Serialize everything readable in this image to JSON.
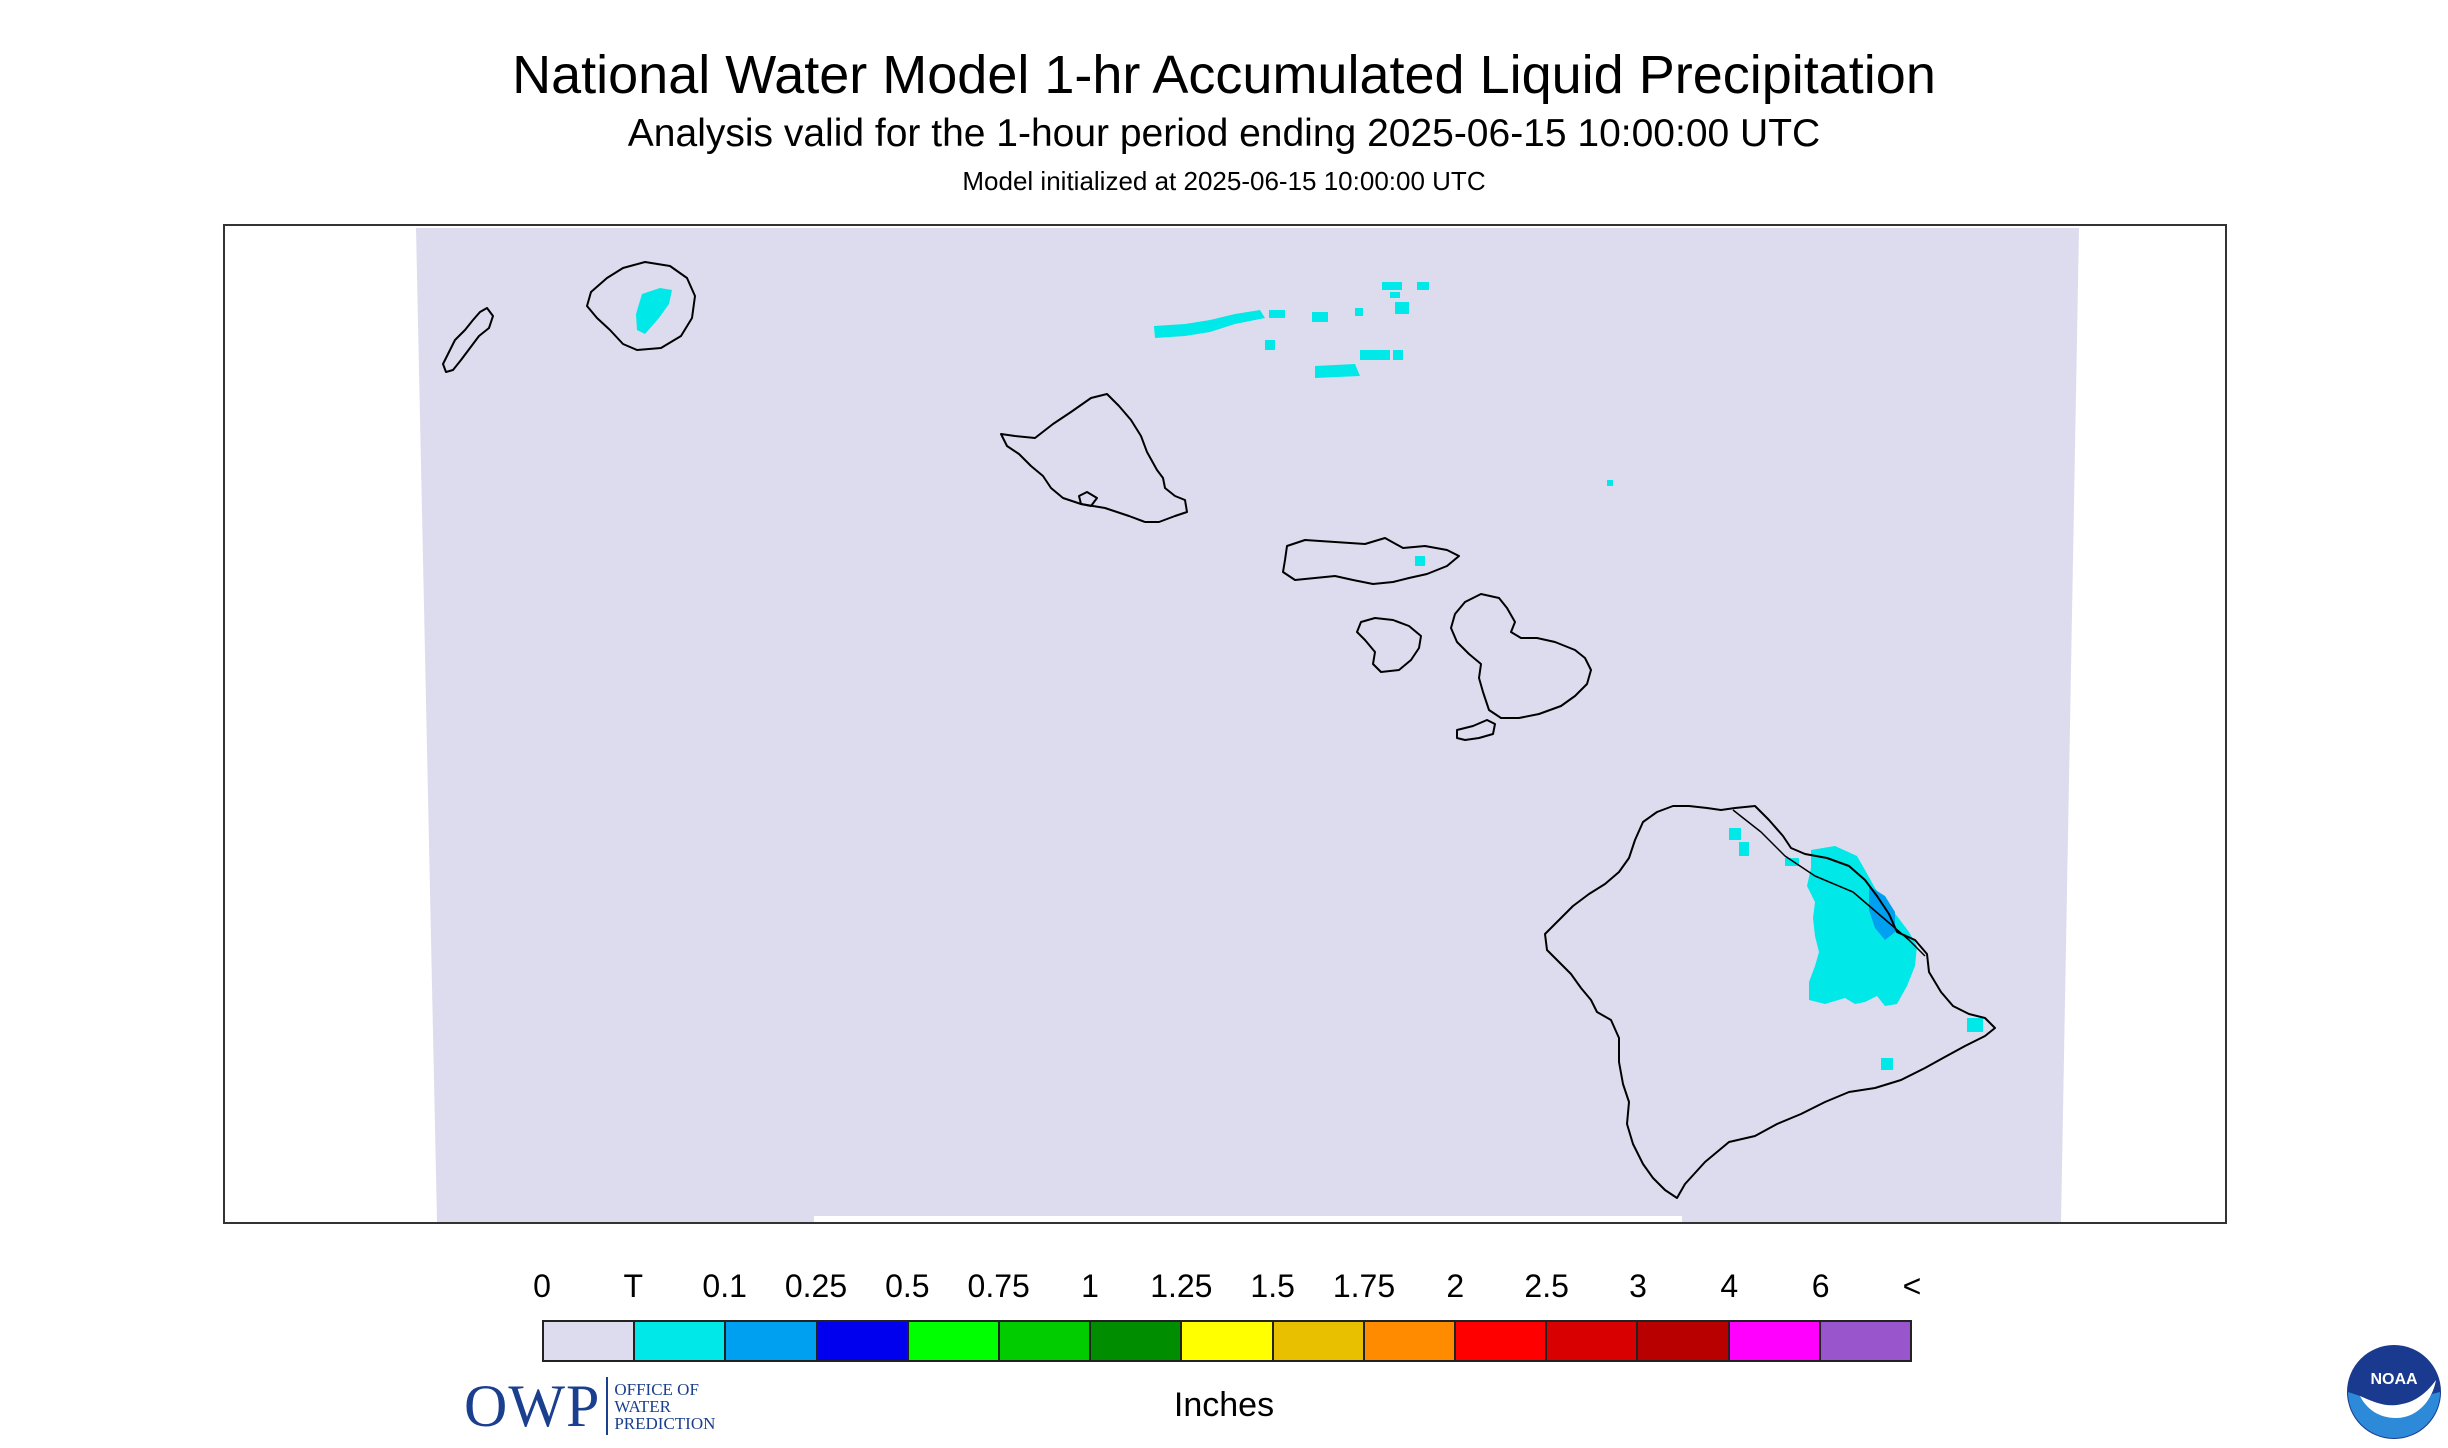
{
  "title": "National Water Model 1-hr Accumulated Liquid Precipitation",
  "subtitle": "Analysis valid for the 1-hour period ending 2025-06-15 10:00:00 UTC",
  "init_note": "Model initialized at 2025-06-15 10:00:00 UTC",
  "map": {
    "background_color": "#dcdcee",
    "coast_color": "#000000",
    "islands": [
      "Niihau",
      "Kauai",
      "Oahu",
      "Molokai",
      "Lanai",
      "Maui",
      "Kahoolawe",
      "Hawaii"
    ]
  },
  "logos": {
    "owp_letters": "OWP",
    "owp_line1": "OFFICE OF",
    "owp_line2": "WATER",
    "owp_line3": "PREDICTION",
    "noaa_text": "NOAA"
  },
  "legend": {
    "labels": [
      "0",
      "T",
      "0.1",
      "0.25",
      "0.5",
      "0.75",
      "1",
      "1.25",
      "1.5",
      "1.75",
      "2",
      "2.5",
      "3",
      "4",
      "6",
      "<"
    ],
    "colors": [
      "#dcdcee",
      "#00e8e8",
      "#00a0f0",
      "#0000ee",
      "#00ff00",
      "#00cc00",
      "#008e00",
      "#ffff00",
      "#e8c000",
      "#ff8c00",
      "#ff0000",
      "#d80000",
      "#b80000",
      "#ff00ff",
      "#9955cc"
    ],
    "units": "Inches"
  }
}
